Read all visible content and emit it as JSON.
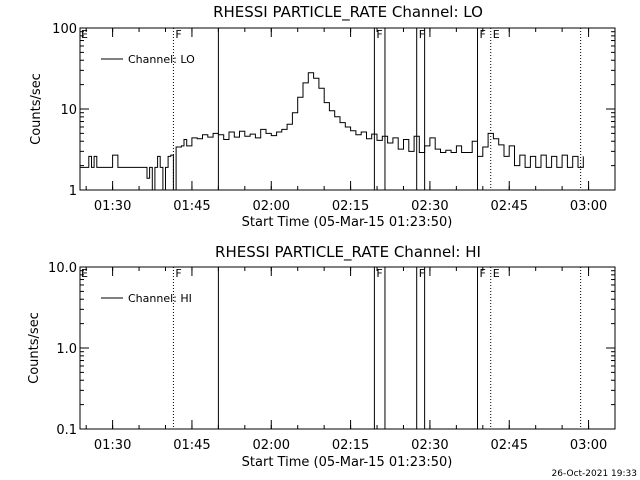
{
  "footer_timestamp": "26-Oct-2021 19:33",
  "chart_data": [
    {
      "type": "line",
      "title": "RHESSI PARTICLE_RATE Channel: LO",
      "xlabel": "Start Time (05-Mar-15 01:23:50)",
      "ylabel": "Counts/sec",
      "yscale": "log",
      "ylim": [
        1,
        100
      ],
      "yticks": [
        "1",
        "10",
        "100"
      ],
      "xticks": [
        "01:30",
        "01:45",
        "02:00",
        "02:15",
        "02:30",
        "02:45",
        "03:00"
      ],
      "xlim_hours": [
        1.3972,
        3.0833
      ],
      "legend": "Channel: LO",
      "legend_position": "top-left",
      "markers": [
        {
          "label": "E",
          "time": "01:23:50",
          "style": "none"
        },
        {
          "label": "F",
          "time": "01:41:30",
          "style": "dotted"
        },
        {
          "label": "",
          "time": "01:50:00",
          "style": "solid"
        },
        {
          "label": "F",
          "time": "02:19:30",
          "style": "solid"
        },
        {
          "label": "",
          "time": "02:21:30",
          "style": "solid"
        },
        {
          "label": "F",
          "time": "02:27:30",
          "style": "solid"
        },
        {
          "label": "",
          "time": "02:29:00",
          "style": "solid"
        },
        {
          "label": "F",
          "time": "02:39:00",
          "style": "solid"
        },
        {
          "label": "E",
          "time": "02:41:30",
          "style": "dotted"
        },
        {
          "label": "",
          "time": "02:58:30",
          "style": "dotted"
        }
      ],
      "series": [
        {
          "points": [
            [
              "01:23:50",
              1.9
            ],
            [
              "01:25:00",
              1.9
            ],
            [
              "01:25:30",
              2.6
            ],
            [
              "01:26:00",
              1.9
            ],
            [
              "01:26:30",
              2.6
            ],
            [
              "01:27:00",
              1.9
            ],
            [
              "01:29:00",
              1.9
            ],
            [
              "01:30:00",
              2.7
            ],
            [
              "01:31:00",
              1.9
            ],
            [
              "01:36:00",
              1.9
            ],
            [
              "01:36:30",
              1.4
            ],
            [
              "01:37:00",
              1.9
            ],
            [
              "01:37:30",
              1.0
            ],
            [
              "01:38:00",
              1.9
            ],
            [
              "01:38:30",
              2.6
            ],
            [
              "01:39:00",
              1.9
            ],
            [
              "01:39:30",
              1.0
            ],
            [
              "01:40:00",
              1.9
            ],
            [
              "01:40:30",
              2.6
            ],
            [
              "01:41:00",
              2.7
            ],
            [
              "01:41:30",
              1.0
            ],
            [
              "01:42:00",
              3.4
            ],
            [
              "01:43:00",
              3.5
            ],
            [
              "01:43:30",
              4.2
            ],
            [
              "01:44:00",
              3.5
            ],
            [
              "01:45:00",
              4.4
            ],
            [
              "01:46:00",
              4.3
            ],
            [
              "01:47:00",
              4.8
            ],
            [
              "01:48:00",
              4.5
            ],
            [
              "01:49:00",
              5.0
            ],
            [
              "01:50:00",
              4.8
            ],
            [
              "01:51:00",
              4.2
            ],
            [
              "01:52:00",
              5.2
            ],
            [
              "01:53:00",
              4.5
            ],
            [
              "01:54:00",
              5.3
            ],
            [
              "01:55:00",
              4.6
            ],
            [
              "01:56:00",
              4.9
            ],
            [
              "01:57:00",
              4.4
            ],
            [
              "01:58:00",
              5.6
            ],
            [
              "01:59:00",
              5.0
            ],
            [
              "02:00:00",
              4.7
            ],
            [
              "02:01:00",
              5.2
            ],
            [
              "02:02:00",
              5.6
            ],
            [
              "02:03:00",
              6.5
            ],
            [
              "02:04:00",
              9.0
            ],
            [
              "02:05:00",
              14.0
            ],
            [
              "02:06:00",
              21.0
            ],
            [
              "02:07:00",
              28.0
            ],
            [
              "02:08:00",
              24.0
            ],
            [
              "02:09:00",
              18.0
            ],
            [
              "02:10:00",
              12.0
            ],
            [
              "02:11:00",
              9.5
            ],
            [
              "02:12:00",
              8.0
            ],
            [
              "02:13:00",
              6.8
            ],
            [
              "02:14:00",
              6.0
            ],
            [
              "02:15:00",
              5.4
            ],
            [
              "02:16:00",
              4.8
            ],
            [
              "02:17:00",
              5.2
            ],
            [
              "02:18:00",
              4.3
            ],
            [
              "02:19:00",
              4.9
            ],
            [
              "02:20:00",
              4.1
            ],
            [
              "02:21:00",
              4.6
            ],
            [
              "02:22:00",
              3.8
            ],
            [
              "02:23:00",
              4.4
            ],
            [
              "02:24:00",
              3.2
            ],
            [
              "02:25:00",
              4.2
            ],
            [
              "02:26:00",
              3.0
            ],
            [
              "02:27:00",
              4.6
            ],
            [
              "02:28:00",
              2.9
            ],
            [
              "02:29:00",
              3.5
            ],
            [
              "02:30:00",
              4.4
            ],
            [
              "02:31:00",
              3.2
            ],
            [
              "02:32:00",
              2.9
            ],
            [
              "02:33:00",
              3.1
            ],
            [
              "02:34:00",
              2.9
            ],
            [
              "02:35:00",
              3.5
            ],
            [
              "02:36:00",
              2.9
            ],
            [
              "02:37:00",
              2.9
            ],
            [
              "02:38:00",
              4.0
            ],
            [
              "02:39:00",
              2.6
            ],
            [
              "02:40:00",
              3.4
            ],
            [
              "02:41:00",
              5.0
            ],
            [
              "02:42:00",
              4.3
            ],
            [
              "02:43:00",
              3.6
            ],
            [
              "02:44:00",
              2.6
            ],
            [
              "02:45:00",
              3.5
            ],
            [
              "02:46:00",
              2.0
            ],
            [
              "02:47:00",
              2.7
            ],
            [
              "02:48:00",
              1.9
            ],
            [
              "02:49:00",
              2.6
            ],
            [
              "02:50:00",
              1.9
            ],
            [
              "02:51:00",
              2.7
            ],
            [
              "02:52:00",
              1.9
            ],
            [
              "02:53:00",
              2.6
            ],
            [
              "02:54:00",
              1.9
            ],
            [
              "02:55:00",
              2.7
            ],
            [
              "02:56:00",
              1.9
            ],
            [
              "02:57:00",
              2.6
            ],
            [
              "02:58:00",
              1.9
            ],
            [
              "02:59:00",
              2.6
            ]
          ]
        }
      ]
    },
    {
      "type": "line",
      "title": "RHESSI PARTICLE_RATE Channel: HI",
      "xlabel": "Start Time (05-Mar-15 01:23:50)",
      "ylabel": "Counts/sec",
      "yscale": "log",
      "ylim": [
        0.1,
        10
      ],
      "yticks": [
        "0.1",
        "1.0",
        "10.0"
      ],
      "xticks": [
        "01:30",
        "01:45",
        "02:00",
        "02:15",
        "02:30",
        "02:45",
        "03:00"
      ],
      "xlim_hours": [
        1.3972,
        3.0833
      ],
      "legend": "Channel: HI",
      "legend_position": "top-left",
      "markers": [
        {
          "label": "E",
          "time": "01:23:50",
          "style": "none"
        },
        {
          "label": "F",
          "time": "01:41:30",
          "style": "dotted"
        },
        {
          "label": "",
          "time": "01:50:00",
          "style": "solid"
        },
        {
          "label": "F",
          "time": "02:19:30",
          "style": "solid"
        },
        {
          "label": "",
          "time": "02:21:30",
          "style": "solid"
        },
        {
          "label": "F",
          "time": "02:27:30",
          "style": "solid"
        },
        {
          "label": "",
          "time": "02:29:00",
          "style": "solid"
        },
        {
          "label": "F",
          "time": "02:39:00",
          "style": "solid"
        },
        {
          "label": "E",
          "time": "02:41:30",
          "style": "dotted"
        },
        {
          "label": "",
          "time": "02:58:30",
          "style": "dotted"
        }
      ],
      "series": [
        {
          "points": []
        }
      ]
    }
  ]
}
